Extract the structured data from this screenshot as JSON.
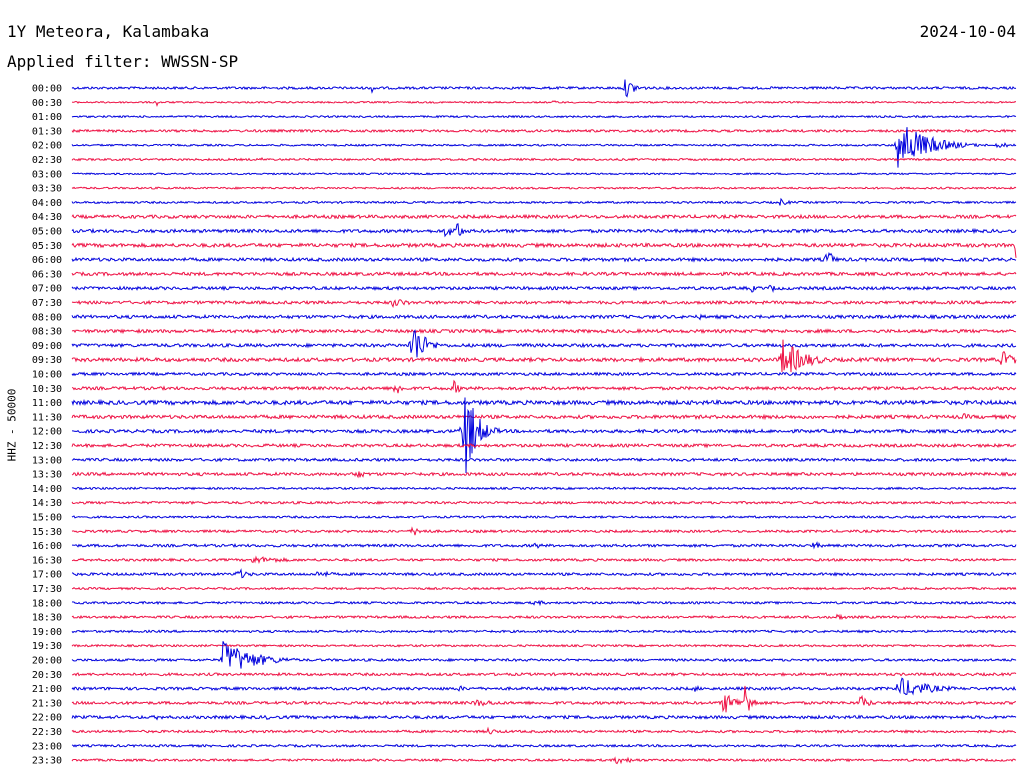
{
  "header": {
    "station": "1Y Meteora, Kalambaka",
    "date": "2024-10-04",
    "filter": "Applied filter: WWSSN-SP"
  },
  "chart_data": {
    "type": "line",
    "title": "1Y Meteora, Kalambaka",
    "subtitle": "Applied filter: WWSSN-SP",
    "ylabel": "HHZ - 50000",
    "colors": [
      "#0000dd",
      "#ee1144"
    ],
    "rows": [
      "00:00",
      "00:30",
      "01:00",
      "01:30",
      "02:00",
      "02:30",
      "03:00",
      "03:30",
      "04:00",
      "04:30",
      "05:00",
      "05:30",
      "06:00",
      "06:30",
      "07:00",
      "07:30",
      "08:00",
      "08:30",
      "09:00",
      "09:30",
      "10:00",
      "10:30",
      "11:00",
      "11:30",
      "12:00",
      "12:30",
      "13:00",
      "13:30",
      "14:00",
      "14:30",
      "15:00",
      "15:30",
      "16:00",
      "16:30",
      "17:00",
      "17:30",
      "18:00",
      "18:30",
      "19:00",
      "19:30",
      "20:00",
      "20:30",
      "21:00",
      "21:30",
      "22:00",
      "22:30",
      "23:00",
      "23:30"
    ],
    "noise": [
      1.2,
      0.8,
      0.9,
      1.2,
      0.9,
      1.0,
      0.8,
      0.9,
      1.0,
      1.6,
      1.6,
      1.8,
      1.6,
      1.6,
      1.5,
      1.5,
      1.6,
      1.6,
      1.6,
      1.8,
      1.4,
      1.5,
      2.0,
      1.7,
      1.6,
      1.5,
      1.4,
      1.5,
      1.0,
      1.2,
      1.0,
      1.2,
      1.3,
      1.2,
      1.3,
      1.0,
      1.1,
      1.2,
      1.1,
      1.0,
      1.2,
      1.3,
      1.4,
      1.4,
      1.5,
      1.2,
      1.1,
      1.1
    ],
    "events": [
      {
        "row": 0,
        "t": 0.318,
        "amp": 5,
        "dur": 0.006
      },
      {
        "row": 0,
        "t": 0.586,
        "amp": 10,
        "dur": 0.012
      },
      {
        "row": 1,
        "t": 0.09,
        "amp": 4,
        "dur": 0.002
      },
      {
        "row": 1,
        "t": 0.51,
        "amp": 2,
        "dur": 0.01
      },
      {
        "row": 4,
        "t": 0.875,
        "amp": 28,
        "dur": 0.028
      },
      {
        "row": 4,
        "t": 0.98,
        "amp": 3,
        "dur": 0.02
      },
      {
        "row": 5,
        "t": 0.2,
        "amp": 2,
        "dur": 0.008
      },
      {
        "row": 5,
        "t": 0.4,
        "amp": 2,
        "dur": 0.008
      },
      {
        "row": 8,
        "t": 0.75,
        "amp": 4,
        "dur": 0.01
      },
      {
        "row": 10,
        "t": 0.395,
        "amp": 6,
        "dur": 0.015
      },
      {
        "row": 10,
        "t": 0.408,
        "amp": 14,
        "dur": 0.004
      },
      {
        "row": 11,
        "t": 1.0,
        "amp": 16,
        "dur": 0.014
      },
      {
        "row": 12,
        "t": 0.8,
        "amp": 15,
        "dur": 0.005
      },
      {
        "row": 14,
        "t": 0.72,
        "amp": 5,
        "dur": 0.004
      },
      {
        "row": 14,
        "t": 0.74,
        "amp": 6,
        "dur": 0.004
      },
      {
        "row": 15,
        "t": 0.34,
        "amp": 5,
        "dur": 0.018
      },
      {
        "row": 16,
        "t": 0.665,
        "amp": 3,
        "dur": 0.004
      },
      {
        "row": 18,
        "t": 0.36,
        "amp": 28,
        "dur": 0.012
      },
      {
        "row": 18,
        "t": 0.48,
        "amp": 3,
        "dur": 0.008
      },
      {
        "row": 19,
        "t": 0.752,
        "amp": 22,
        "dur": 0.022
      },
      {
        "row": 19,
        "t": 0.985,
        "amp": 10,
        "dur": 0.014
      },
      {
        "row": 21,
        "t": 0.342,
        "amp": 9,
        "dur": 0.008
      },
      {
        "row": 21,
        "t": 0.404,
        "amp": 9,
        "dur": 0.006
      },
      {
        "row": 23,
        "t": 0.945,
        "amp": 4,
        "dur": 0.008
      },
      {
        "row": 24,
        "t": 0.415,
        "amp": 55,
        "dur": 0.012
      },
      {
        "row": 27,
        "t": 0.3,
        "amp": 6,
        "dur": 0.01
      },
      {
        "row": 31,
        "t": 0.36,
        "amp": 5,
        "dur": 0.016
      },
      {
        "row": 32,
        "t": 0.49,
        "amp": 4,
        "dur": 0.008
      },
      {
        "row": 32,
        "t": 0.785,
        "amp": 5,
        "dur": 0.008
      },
      {
        "row": 33,
        "t": 0.19,
        "amp": 4,
        "dur": 0.04
      },
      {
        "row": 34,
        "t": 0.175,
        "amp": 6,
        "dur": 0.012
      },
      {
        "row": 34,
        "t": 0.26,
        "amp": 4,
        "dur": 0.018
      },
      {
        "row": 36,
        "t": 0.49,
        "amp": 3,
        "dur": 0.014
      },
      {
        "row": 37,
        "t": 0.81,
        "amp": 4,
        "dur": 0.01
      },
      {
        "row": 40,
        "t": 0.16,
        "amp": 20,
        "dur": 0.03
      },
      {
        "row": 42,
        "t": 0.41,
        "amp": 3,
        "dur": 0.012
      },
      {
        "row": 42,
        "t": 0.66,
        "amp": 4,
        "dur": 0.005
      },
      {
        "row": 42,
        "t": 0.875,
        "amp": 12,
        "dur": 0.03
      },
      {
        "row": 43,
        "t": 0.426,
        "amp": 4,
        "dur": 0.03
      },
      {
        "row": 43,
        "t": 0.69,
        "amp": 12,
        "dur": 0.014
      },
      {
        "row": 43,
        "t": 0.713,
        "amp": 22,
        "dur": 0.006
      },
      {
        "row": 43,
        "t": 0.835,
        "amp": 8,
        "dur": 0.01
      },
      {
        "row": 43,
        "t": 0.925,
        "amp": 3,
        "dur": 0.008
      },
      {
        "row": 44,
        "t": 0.09,
        "amp": 3,
        "dur": 0.008
      },
      {
        "row": 44,
        "t": 0.205,
        "amp": 3,
        "dur": 0.008
      },
      {
        "row": 45,
        "t": 0.44,
        "amp": 4,
        "dur": 0.012
      },
      {
        "row": 47,
        "t": 0.575,
        "amp": 4,
        "dur": 0.025
      }
    ]
  }
}
